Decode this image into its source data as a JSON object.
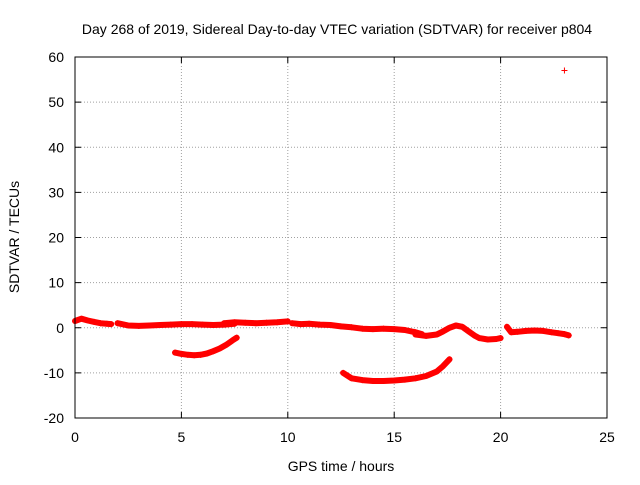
{
  "chart_data": {
    "type": "scatter",
    "title": "Day 268 of 2019, Sidereal Day-to-day VTEC variation (SDTVAR) for receiver p804",
    "xlabel": "GPS time / hours",
    "ylabel": "SDTVAR / TECUs",
    "xlim": [
      0,
      25
    ],
    "ylim": [
      -20,
      60
    ],
    "xticks": [
      0,
      5,
      10,
      15,
      20,
      25
    ],
    "yticks": [
      -20,
      -10,
      0,
      10,
      20,
      30,
      40,
      50,
      60
    ],
    "xtick_labels": [
      "0",
      "5",
      "10",
      "15",
      "20",
      "25"
    ],
    "ytick_labels": [
      "-20",
      "-10",
      "0",
      "10",
      "20",
      "30",
      "40",
      "50",
      "60"
    ],
    "grid": true,
    "marker": "+",
    "series": [
      {
        "name": "track-main-1",
        "color": "#ff0000",
        "x": [
          0.0,
          0.3,
          0.6,
          0.9,
          1.2,
          1.5,
          1.7
        ],
        "y": [
          1.5,
          2.0,
          1.6,
          1.3,
          1.0,
          0.9,
          0.8
        ]
      },
      {
        "name": "track-main-2",
        "color": "#ff0000",
        "x": [
          2.0,
          2.5,
          3.0,
          3.5,
          4.0,
          4.5,
          5.0,
          5.5,
          6.0,
          6.5,
          7.0,
          7.5
        ],
        "y": [
          1.0,
          0.5,
          0.4,
          0.5,
          0.6,
          0.7,
          0.8,
          0.8,
          0.7,
          0.6,
          0.7,
          0.9
        ]
      },
      {
        "name": "track-main-3",
        "color": "#ff0000",
        "x": [
          7.0,
          7.5,
          8.0,
          8.5,
          9.0,
          9.5,
          10.0
        ],
        "y": [
          1.0,
          1.2,
          1.1,
          1.0,
          1.1,
          1.2,
          1.4
        ]
      },
      {
        "name": "track-main-4",
        "color": "#ff0000",
        "x": [
          10.2,
          10.6,
          11.0,
          11.5,
          12.0,
          12.5,
          13.0,
          13.5,
          14.0,
          14.5,
          15.0,
          15.5,
          16.0,
          16.3
        ],
        "y": [
          1.0,
          0.8,
          0.9,
          0.7,
          0.6,
          0.3,
          0.1,
          -0.2,
          -0.3,
          -0.2,
          -0.3,
          -0.5,
          -1.0,
          -1.4
        ]
      },
      {
        "name": "track-main-5",
        "color": "#ff0000",
        "x": [
          16.0,
          16.5,
          17.0,
          17.3,
          17.6,
          17.9,
          18.2,
          18.5,
          18.8,
          19.0,
          19.4,
          19.8,
          20.0
        ],
        "y": [
          -1.5,
          -1.8,
          -1.5,
          -0.8,
          0.0,
          0.5,
          0.2,
          -0.8,
          -1.8,
          -2.3,
          -2.6,
          -2.5,
          -2.3
        ]
      },
      {
        "name": "track-main-6",
        "color": "#ff0000",
        "x": [
          20.3,
          20.5,
          20.8,
          21.2,
          21.6,
          22.0,
          22.4,
          22.7,
          23.0,
          23.2
        ],
        "y": [
          0.2,
          -1.0,
          -0.9,
          -0.7,
          -0.6,
          -0.7,
          -1.0,
          -1.2,
          -1.4,
          -1.7
        ]
      },
      {
        "name": "track-low-1",
        "color": "#ff0000",
        "x": [
          4.7,
          5.0,
          5.3,
          5.6,
          5.9,
          6.2,
          6.5,
          6.8,
          7.1,
          7.4,
          7.6
        ],
        "y": [
          -5.5,
          -5.8,
          -6.0,
          -6.1,
          -6.0,
          -5.7,
          -5.2,
          -4.6,
          -3.8,
          -2.8,
          -2.2
        ]
      },
      {
        "name": "track-low-2",
        "color": "#ff0000",
        "x": [
          12.6,
          13.0,
          13.5,
          14.0,
          14.5,
          15.0,
          15.5,
          16.0,
          16.5,
          17.0,
          17.3,
          17.6
        ],
        "y": [
          -10.0,
          -11.2,
          -11.6,
          -11.8,
          -11.8,
          -11.7,
          -11.5,
          -11.2,
          -10.7,
          -9.7,
          -8.5,
          -7.0
        ]
      },
      {
        "name": "outlier",
        "color": "#ff0000",
        "x": [
          23.0
        ],
        "y": [
          57.0
        ]
      }
    ]
  }
}
